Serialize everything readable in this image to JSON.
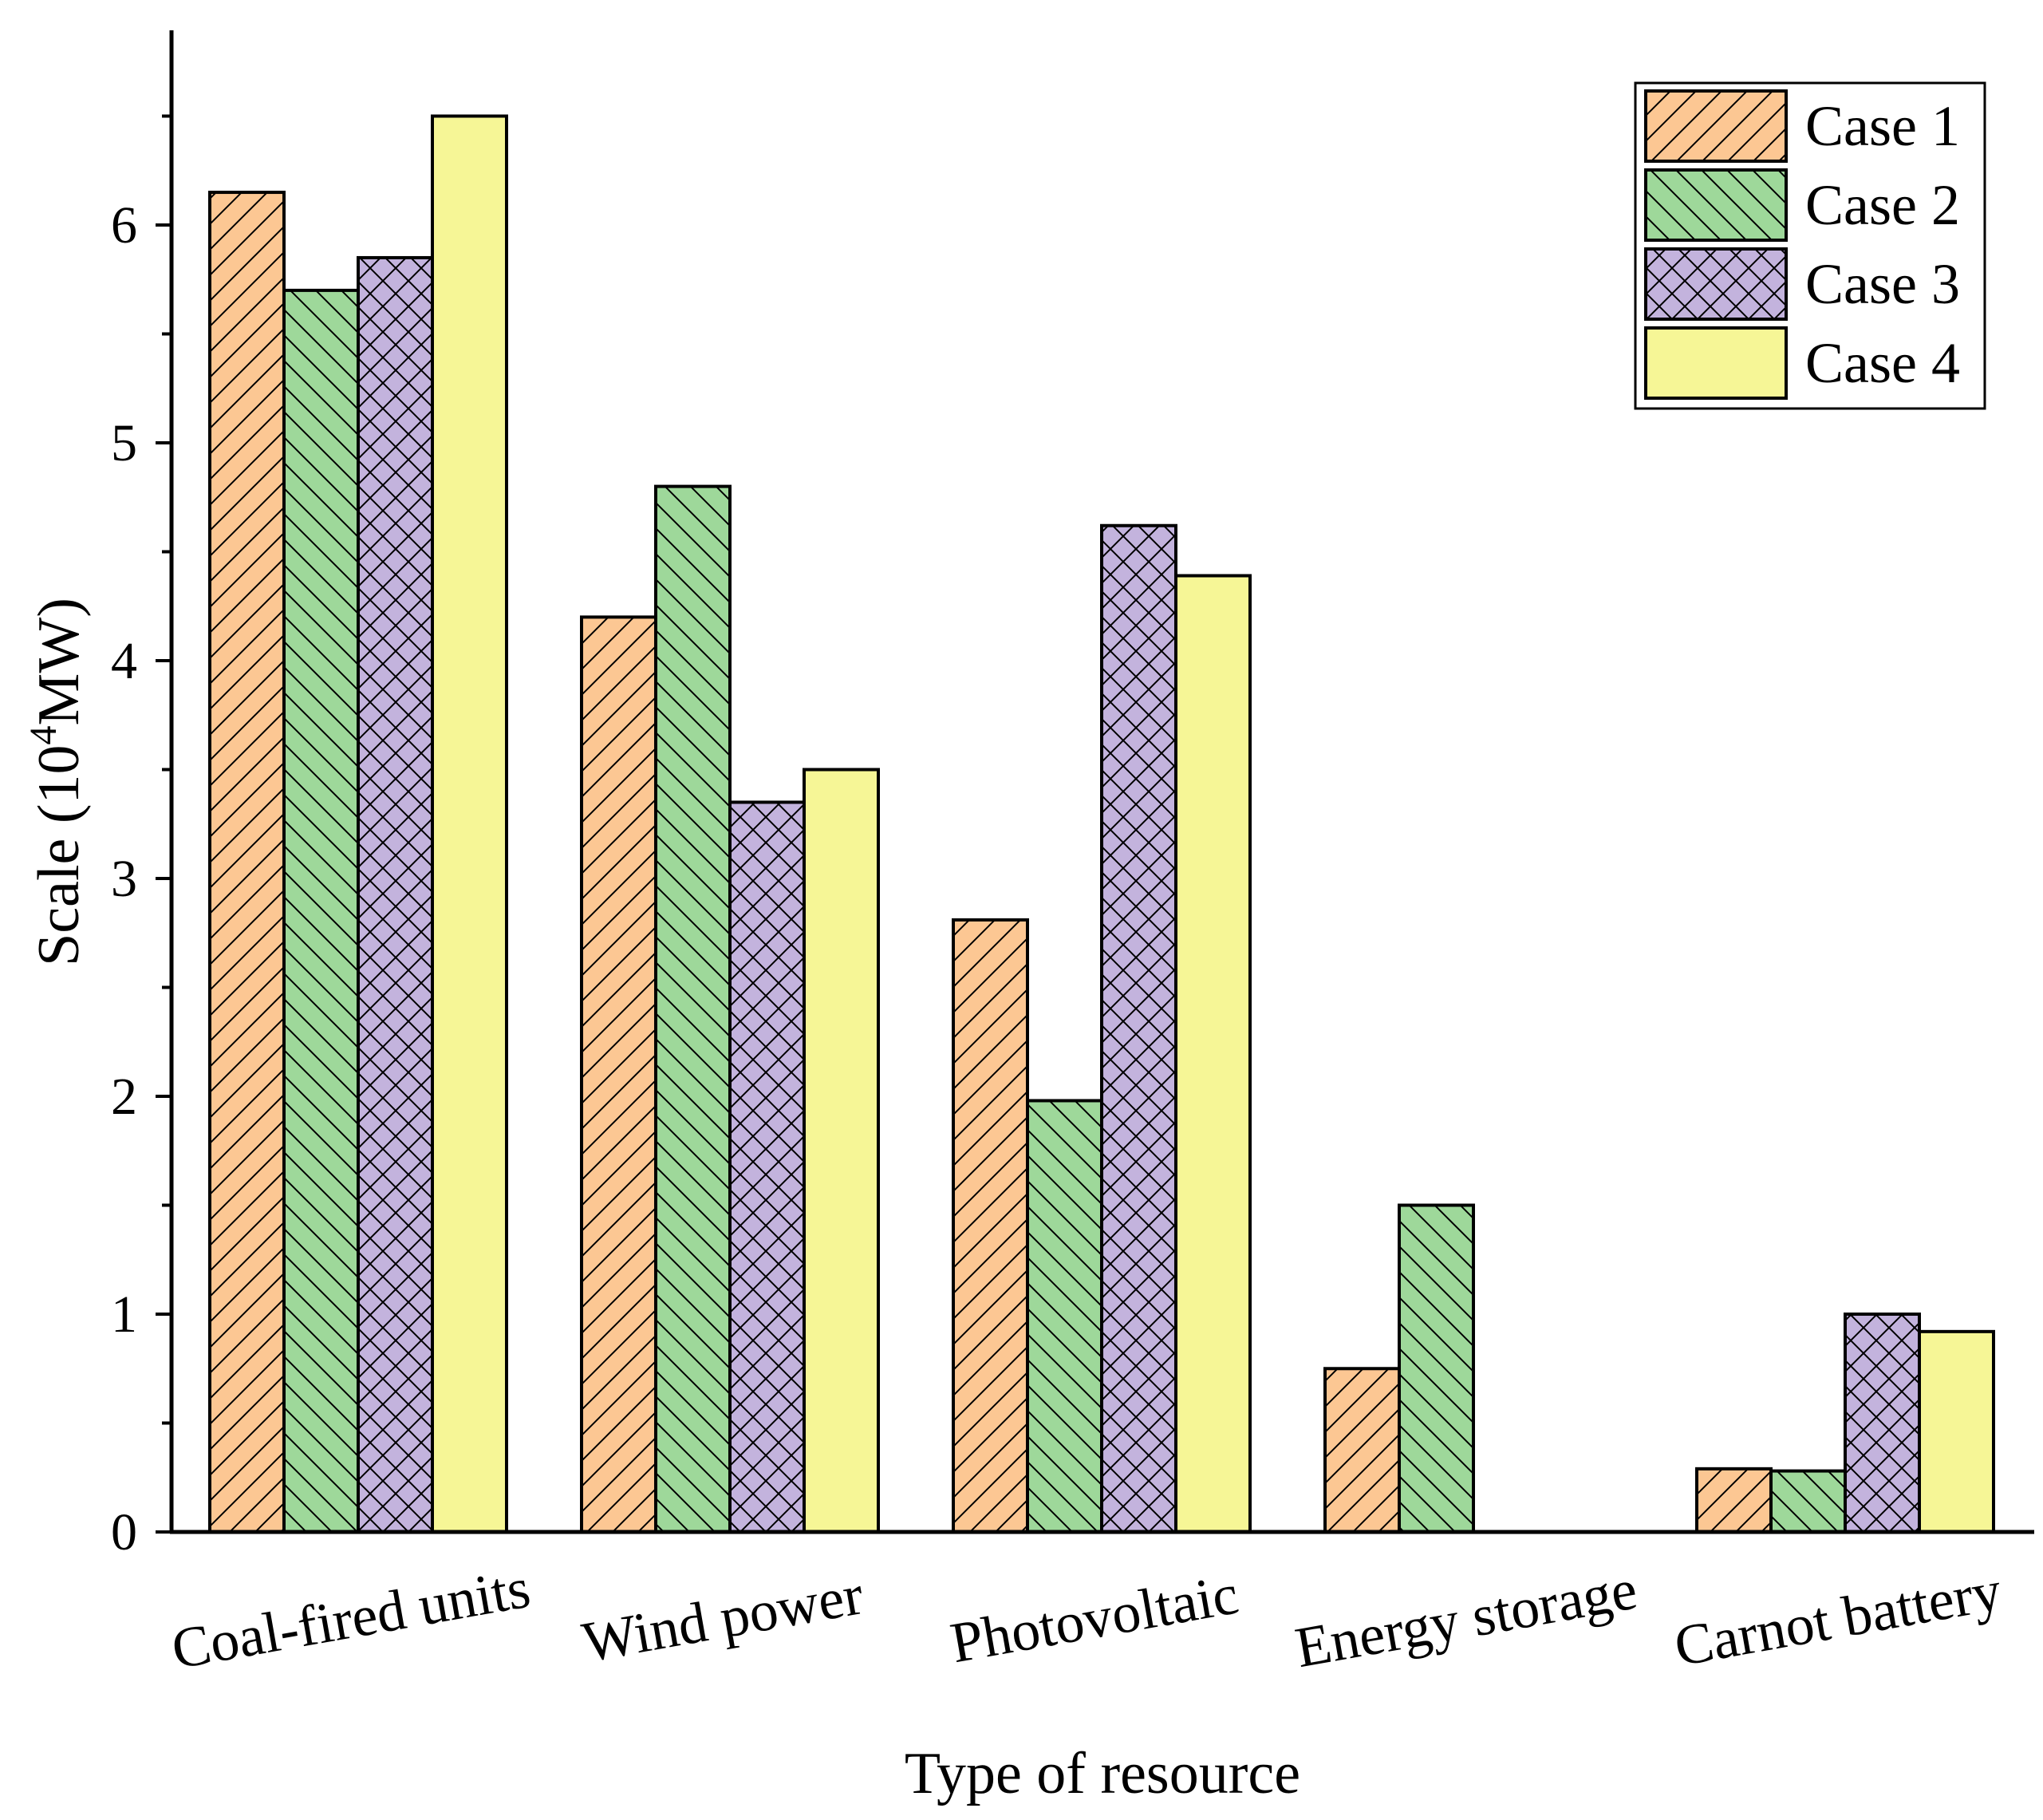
{
  "chart_data": {
    "type": "bar",
    "title": "",
    "xlabel": "Type of resource",
    "ylabel": {
      "prefix": "Scale (10",
      "superscript": "4",
      "suffix": "MW)"
    },
    "ylim": [
      0,
      7
    ],
    "yticks": [
      0,
      1,
      2,
      3,
      4,
      5,
      6
    ],
    "ytick_labels": [
      "0",
      "1",
      "2",
      "3",
      "4",
      "5",
      "6"
    ],
    "categories": [
      "Coal-fired units",
      "Wind power",
      "Photovoltaic",
      "Energy storage",
      "Carnot battery"
    ],
    "series": [
      {
        "name": "Case 1",
        "color": "#fcc793",
        "pattern": "forward-diagonal",
        "values": [
          6.15,
          4.2,
          2.81,
          0.75,
          0.29
        ]
      },
      {
        "name": "Case 2",
        "color": "#9ed89a",
        "pattern": "back-diagonal",
        "values": [
          5.7,
          4.8,
          1.98,
          1.5,
          0.28
        ]
      },
      {
        "name": "Case 3",
        "color": "#c3b3dd",
        "pattern": "crosshatch",
        "values": [
          5.85,
          3.35,
          4.62,
          0,
          1.0
        ]
      },
      {
        "name": "Case 4",
        "color": "#f6f696",
        "pattern": "none",
        "values": [
          6.5,
          3.5,
          4.39,
          0,
          0.92
        ]
      }
    ],
    "legend": {
      "position": "top-right"
    },
    "grid": false
  }
}
